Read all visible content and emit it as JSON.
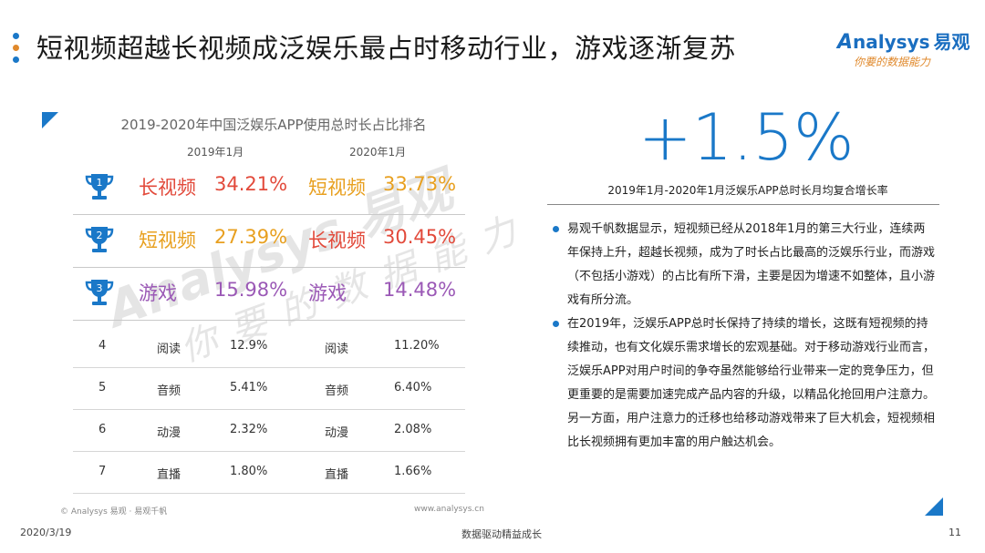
{
  "header": {
    "title": "短视频超越长视频成泛娱乐最占时移动行业，游戏逐渐复苏",
    "dot_colors": [
      "#1a78c8",
      "#e0892c",
      "#1a78c8"
    ],
    "logo_brand": "nalysys",
    "logo_initial": "A",
    "logo_cn": "易观",
    "logo_slogan": "你要的数据能力"
  },
  "ranking": {
    "title": "2019-2020年中国泛娱乐APP使用总时长占比排名",
    "col_2019": "2019年1月",
    "col_2020": "2020年1月",
    "top": [
      {
        "rank": "1",
        "name_2019": "长视频",
        "val_2019": "34.21%",
        "name_2020": "短视频",
        "val_2020": "33.73%",
        "color_2019": "#e24a3b",
        "color_2020": "#e8a020"
      },
      {
        "rank": "2",
        "name_2019": "短视频",
        "val_2019": "27.39%",
        "name_2020": "长视频",
        "val_2020": "30.45%",
        "color_2019": "#e8a020",
        "color_2020": "#e24a3b"
      },
      {
        "rank": "3",
        "name_2019": "游戏",
        "val_2019": "15.98%",
        "name_2020": "游戏",
        "val_2020": "14.48%",
        "color_2019": "#9b59b6",
        "color_2020": "#9b59b6"
      }
    ],
    "rest": [
      {
        "rank": "4",
        "name_2019": "阅读",
        "val_2019": "12.9%",
        "name_2020": "阅读",
        "val_2020": "11.20%"
      },
      {
        "rank": "5",
        "name_2019": "音频",
        "val_2019": "5.41%",
        "name_2020": "音频",
        "val_2020": "6.40%"
      },
      {
        "rank": "6",
        "name_2019": "动漫",
        "val_2019": "2.32%",
        "name_2020": "动漫",
        "val_2020": "2.08%"
      },
      {
        "rank": "7",
        "name_2019": "直播",
        "val_2019": "1.80%",
        "name_2020": "直播",
        "val_2020": "1.66%"
      }
    ],
    "trophy_color": "#1a78c8",
    "footer_left": "© Analysys 易观 · 易观千帆",
    "footer_right": "www.analysys.cn"
  },
  "watermark": {
    "line1": "Analysys 易观",
    "line2": "你要的数据能力"
  },
  "growth": {
    "value": "+1.5%",
    "caption": "2019年1月-2020年1月泛娱乐APP总时长月均复合增长率"
  },
  "bullets": [
    "易观千帆数据显示，短视频已经从2018年1月的第三大行业，连续两年保持上升，超越长视频，成为了时长占比最高的泛娱乐行业，而游戏（不包括小游戏）的占比有所下滑，主要是因为增速不如整体，且小游戏有所分流。",
    "在2019年，泛娱乐APP总时长保持了持续的增长，这既有短视频的持续推动，也有文化娱乐需求增长的宏观基础。对于移动游戏行业而言，泛娱乐APP对用户时间的争夺虽然能够给行业带来一定的竞争压力，但更重要的是需要加速完成产品内容的升级，以精品化抢回用户注意力。另一方面，用户注意力的迁移也给移动游戏带来了巨大机会，短视频相比长视频拥有更加丰富的用户触达机会。"
  ],
  "footer": {
    "date": "2020/3/19",
    "slogan": "数据驱动精益成长",
    "page": "11"
  }
}
